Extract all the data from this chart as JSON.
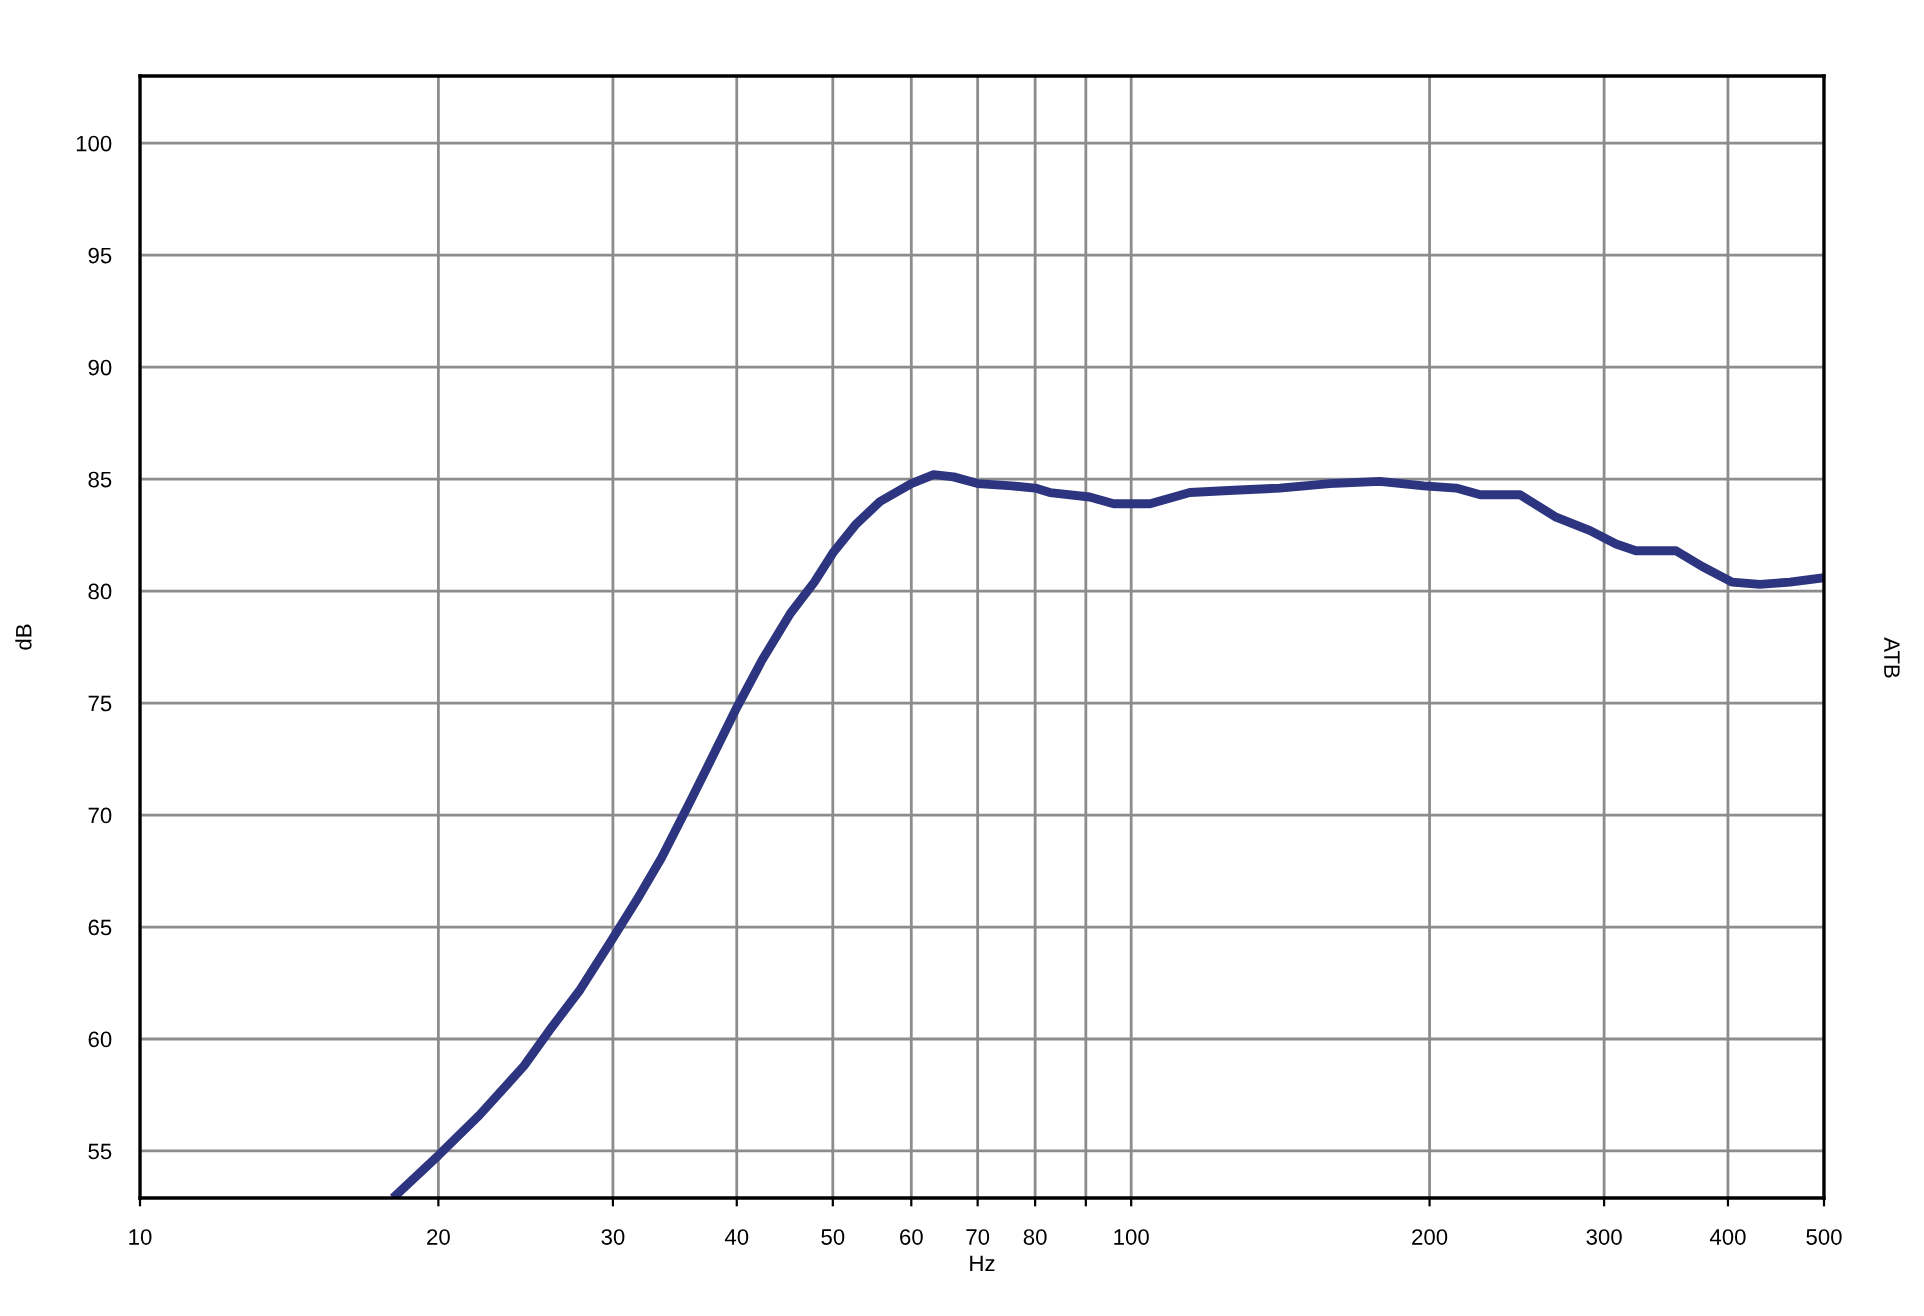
{
  "chart_data": {
    "type": "line",
    "xlabel": "Hz",
    "ylabel": "dB",
    "y2label": "ATB",
    "log": "x",
    "grid": true,
    "line_style": "solid",
    "marker": "none",
    "xlim": [
      10,
      500
    ],
    "ylim": [
      52.9,
      103
    ],
    "xticks": [
      10,
      20,
      30,
      40,
      50,
      60,
      70,
      80,
      {
        "value": 90,
        "label": null
      },
      100,
      200,
      300,
      400,
      500
    ],
    "yticks": [
      55,
      60,
      65,
      70,
      75,
      80,
      85,
      90,
      95,
      100
    ],
    "series": [
      {
        "color": "#2e3580",
        "x": [
          18.0,
          20,
          22.0,
          24.4,
          25.9,
          27.8,
          30,
          31.7,
          33.6,
          35.9,
          37.9,
          40,
          42.4,
          45.3,
          47.9,
          50,
          52.8,
          55.8,
          60,
          63.2,
          66.2,
          70,
          75.8,
          80,
          82.8,
          90.8,
          96,
          104.5,
          114.6,
          126.9,
          141.2,
          158.6,
          178.1,
          197.3,
          212.7,
          225,
          246.8,
          268.3,
          290.4,
          308.4,
          323,
          354.5,
          376.8,
          403.8,
          430.9,
          461.9,
          500
        ],
        "values": [
          52.9,
          54.8,
          56.6,
          58.8,
          60.4,
          62.2,
          64.5,
          66.2,
          68.1,
          70.6,
          72.7,
          74.8,
          76.9,
          79.0,
          80.4,
          81.7,
          83.0,
          84.0,
          84.8,
          85.2,
          85.1,
          84.8,
          84.7,
          84.6,
          84.4,
          84.2,
          83.9,
          83.9,
          84.4,
          84.5,
          84.6,
          84.8,
          84.9,
          84.7,
          84.6,
          84.3,
          84.3,
          83.3,
          82.7,
          82.1,
          81.8,
          81.8,
          81.1,
          80.4,
          80.3,
          80.4,
          80.6
        ]
      }
    ]
  }
}
